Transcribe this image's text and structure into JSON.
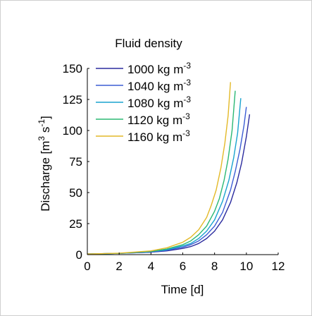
{
  "chart_data": {
    "type": "line",
    "xlabel": "Time [d]",
    "ylabel": "Discharge [m^3 s^-1]",
    "ylabel_parts": {
      "pre": "Discharge [m",
      "sup1": "3",
      "mid": " s",
      "sup2": "-1",
      "post": "]"
    },
    "xlim": [
      0,
      12
    ],
    "ylim": [
      0,
      150
    ],
    "x_ticks": [
      0,
      2,
      4,
      6,
      8,
      10,
      12
    ],
    "y_ticks": [
      0,
      25,
      50,
      75,
      100,
      125,
      150
    ],
    "grid": false,
    "legend": {
      "title": "Fluid density",
      "placement": "top-left",
      "unit_pre": " kg m",
      "unit_sup": "-3"
    },
    "series": [
      {
        "name": "1000 kg m^-3",
        "density": "1000",
        "color": "#2b2b9e",
        "x": [
          0,
          2,
          4,
          5,
          6,
          6.5,
          7,
          7.5,
          8,
          8.5,
          9,
          9.4,
          9.7,
          10.0,
          10.2
        ],
        "y": [
          0.5,
          1,
          2,
          3,
          5,
          6.5,
          9,
          13,
          19,
          28,
          42,
          58,
          74,
          95,
          113
        ]
      },
      {
        "name": "1040 kg m^-3",
        "density": "1040",
        "color": "#3c5dd4",
        "x": [
          0,
          2,
          4,
          5,
          6,
          6.5,
          7,
          7.5,
          8,
          8.5,
          9,
          9.3,
          9.6,
          9.85,
          10.0
        ],
        "y": [
          0.5,
          1,
          2,
          3.5,
          6,
          8,
          11,
          16,
          23,
          34,
          52,
          67,
          85,
          104,
          119
        ]
      },
      {
        "name": "1080 kg m^-3",
        "density": "1080",
        "color": "#1aa3cf",
        "x": [
          0,
          2,
          4,
          5,
          6,
          6.5,
          7,
          7.5,
          8,
          8.5,
          8.9,
          9.2,
          9.45,
          9.65
        ],
        "y": [
          0.5,
          1,
          2.5,
          4,
          7,
          9,
          13,
          19,
          28,
          43,
          60,
          78,
          98,
          126
        ]
      },
      {
        "name": "1120 kg m^-3",
        "density": "1120",
        "color": "#2bb874",
        "x": [
          0,
          2,
          4,
          5,
          6,
          6.5,
          7,
          7.5,
          8,
          8.3,
          8.6,
          8.85,
          9.1,
          9.3
        ],
        "y": [
          0.5,
          1,
          2.5,
          4.5,
          8,
          11,
          16,
          23,
          35,
          45,
          60,
          77,
          100,
          132
        ]
      },
      {
        "name": "1160 kg m^-3",
        "density": "1160",
        "color": "#e3b928",
        "x": [
          0,
          2,
          4,
          5,
          6,
          6.5,
          7,
          7.5,
          7.8,
          8.1,
          8.4,
          8.65,
          8.85,
          9.0
        ],
        "y": [
          0.5,
          1.2,
          3,
          5.5,
          10,
          14,
          20,
          30,
          40,
          52,
          70,
          90,
          112,
          139
        ]
      }
    ]
  }
}
